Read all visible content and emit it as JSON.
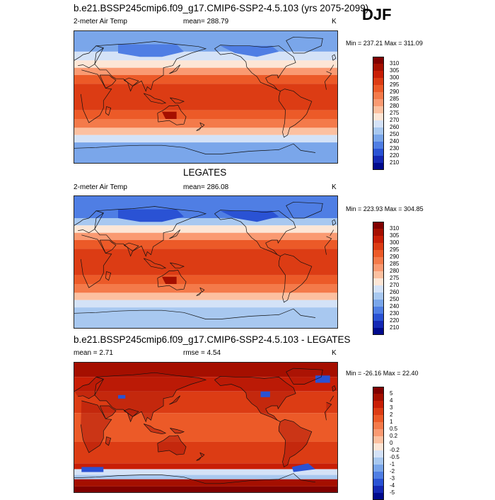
{
  "season": "DJF",
  "panels": [
    {
      "title": "b.e21.BSSP245cmip6.f09_g17.CMIP6-SSP2-4.5.103 (yrs 2075-2099)",
      "left_label": "2-meter Air Temp",
      "center_label": "mean= 288.79",
      "units": "K",
      "minmax": "Min = 237.21 Max = 311.09",
      "kind": "model",
      "colorbar": {
        "labels": [
          "310",
          "305",
          "300",
          "295",
          "290",
          "285",
          "280",
          "275",
          "270",
          "260",
          "250",
          "240",
          "230",
          "220",
          "210"
        ],
        "colors": [
          "#800000",
          "#a50f00",
          "#c81e06",
          "#dc3c14",
          "#ec5a28",
          "#f47a4a",
          "#fa9a72",
          "#fcc0a0",
          "#fde6d6",
          "#d4e2f7",
          "#a8c8f0",
          "#7aa6ea",
          "#4f7ee4",
          "#2a52d4",
          "#1428b4",
          "#000a8c"
        ]
      }
    },
    {
      "title": "LEGATES",
      "left_label": "2-meter Air Temp",
      "center_label": "mean= 286.08",
      "units": "K",
      "minmax": "Min = 223.93 Max = 304.85",
      "kind": "obs",
      "colorbar": {
        "labels": [
          "310",
          "305",
          "300",
          "295",
          "290",
          "285",
          "280",
          "275",
          "270",
          "260",
          "250",
          "240",
          "230",
          "220",
          "210"
        ],
        "colors": [
          "#800000",
          "#a50f00",
          "#c81e06",
          "#dc3c14",
          "#ec5a28",
          "#f47a4a",
          "#fa9a72",
          "#fcc0a0",
          "#fde6d6",
          "#d4e2f7",
          "#a8c8f0",
          "#7aa6ea",
          "#4f7ee4",
          "#2a52d4",
          "#1428b4",
          "#000a8c"
        ]
      }
    },
    {
      "title": "b.e21.BSSP245cmip6.f09_g17.CMIP6-SSP2-4.5.103 - LEGATES",
      "left_label": "mean =   2.71",
      "center_label": "rmse =   4.54",
      "units": "K",
      "minmax": "Min = -26.16 Max =  22.40",
      "kind": "diff",
      "colorbar": {
        "labels": [
          "5",
          "4",
          "3",
          "2",
          "1",
          "0.5",
          "0.2",
          "0",
          "-0.2",
          "-0.5",
          "-1",
          "-2",
          "-3",
          "-4",
          "-5"
        ],
        "colors": [
          "#800000",
          "#a50f00",
          "#c81e06",
          "#dc3c14",
          "#ec5a28",
          "#f47a4a",
          "#fa9a72",
          "#fcc0a0",
          "#fde6d6",
          "#d4e2f7",
          "#a8c8f0",
          "#7aa6ea",
          "#4f7ee4",
          "#2a52d4",
          "#1428b4",
          "#000a8c"
        ]
      }
    }
  ]
}
